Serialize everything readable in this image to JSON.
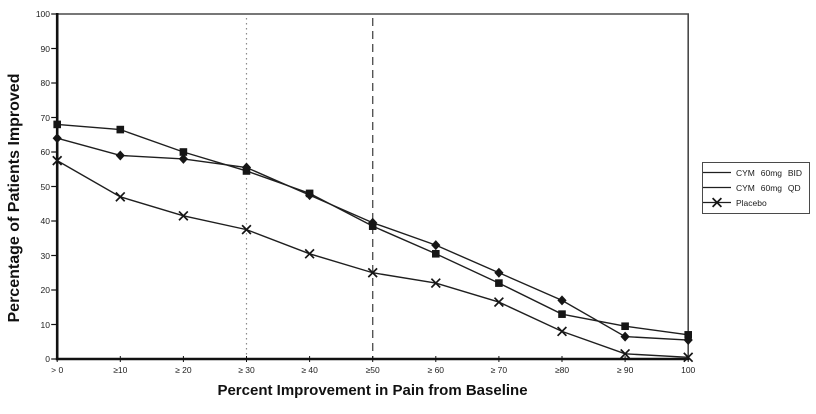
{
  "chart_data": {
    "type": "line",
    "title": "",
    "xlabel": "Percent Improvement in Pain from Baseline",
    "ylabel": "Percentage of Patients Improved",
    "categories": [
      "> 0",
      "≥10",
      "≥ 20",
      "≥ 30",
      "≥ 40",
      "≥50",
      "≥ 60",
      "≥ 70",
      "≥80",
      "≥ 90",
      "100"
    ],
    "y_ticks": [
      0,
      10,
      20,
      30,
      40,
      50,
      60,
      70,
      80,
      90,
      100
    ],
    "ylim": [
      0,
      100
    ],
    "grid": false,
    "legend_position": "outside-right",
    "axis_color": "#111111",
    "line_color": "#1f1f1f",
    "marker_color": "#161616",
    "series": [
      {
        "name": "CYM 60mg BID",
        "marker": "square",
        "legend_marker": false,
        "values": [
          68,
          66.5,
          60,
          54.5,
          48,
          38.5,
          30.5,
          22,
          13,
          9.5,
          7
        ]
      },
      {
        "name": "CYM 60mg QD",
        "marker": "diamond",
        "legend_marker": false,
        "values": [
          64,
          59,
          58,
          55.5,
          47.5,
          39.5,
          33,
          25,
          17,
          6.5,
          5.5
        ]
      },
      {
        "name": "Placebo",
        "marker": "x",
        "legend_marker": true,
        "values": [
          57.5,
          47,
          41.5,
          37.5,
          30.5,
          25,
          22,
          16.5,
          8,
          1.5,
          0.5
        ]
      }
    ],
    "reference_lines": [
      {
        "at_category_index": 3,
        "style": "dotted",
        "color": "#8a8a8a"
      },
      {
        "at_category_index": 5,
        "style": "dashed",
        "color": "#555555"
      }
    ]
  }
}
